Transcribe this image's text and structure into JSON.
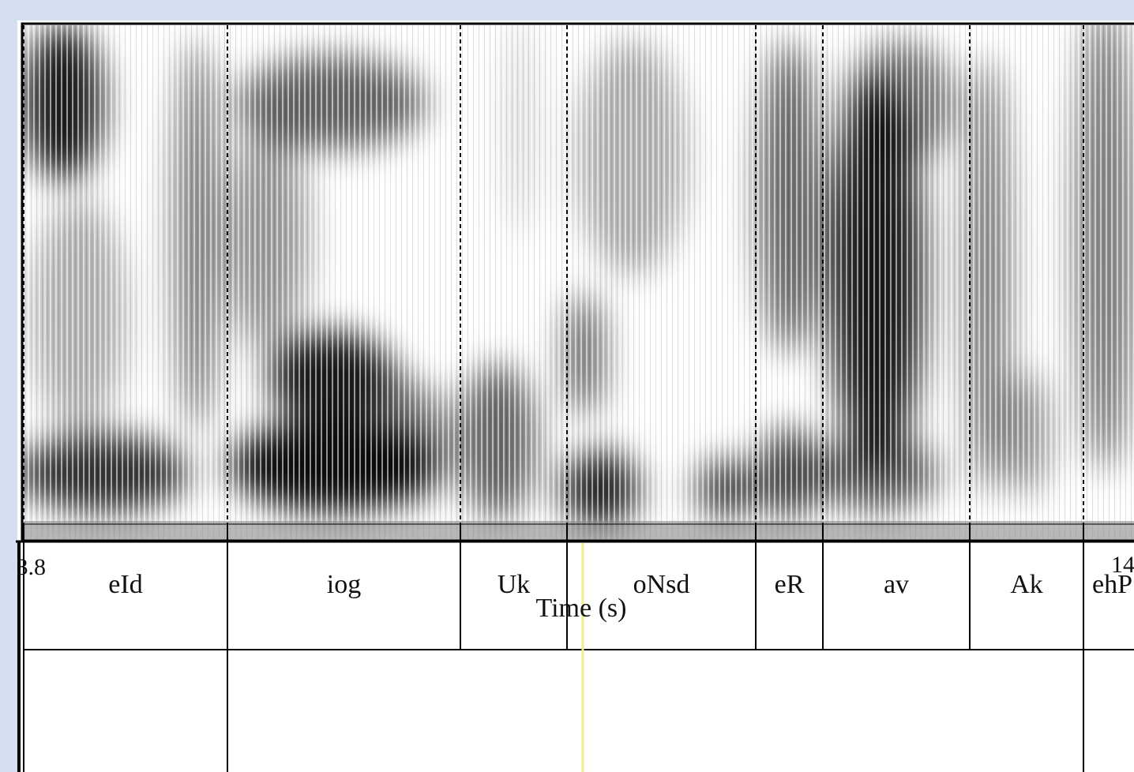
{
  "time_axis": {
    "start_label": "3.8",
    "end_label": "14",
    "title": "Time (s)"
  },
  "tiers": [
    {
      "intervals": [
        "eId",
        "iog",
        "Uk",
        "oNsd",
        "eR",
        "av",
        "Ak",
        "ehP"
      ]
    },
    {
      "intervals": []
    }
  ]
}
